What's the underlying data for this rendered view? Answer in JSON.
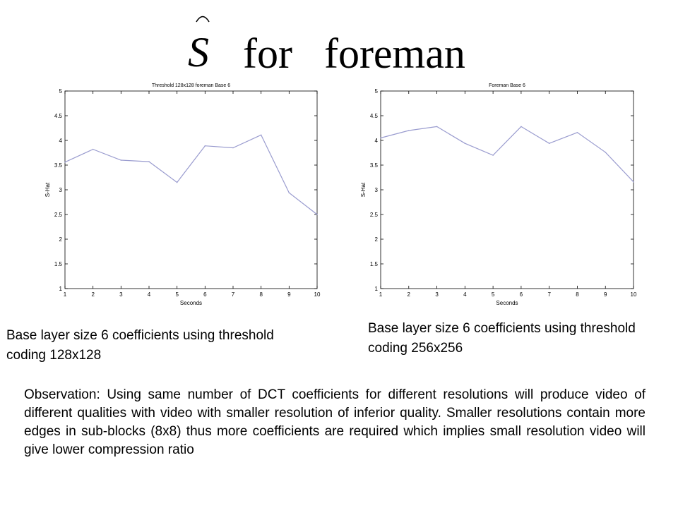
{
  "slide": {
    "title_symbol": "S",
    "title_text": "for   foreman",
    "caption_left": "Base layer size 6 coefficients using threshold coding 128x128",
    "caption_right": "Base layer size 6 coefficients using threshold coding 256x256",
    "observation": "Observation: Using same number of DCT coefficients for different resolutions will produce video of different qualities with video with smaller resolution of inferior quality. Smaller resolutions contain more edges in sub-blocks (8x8) thus more coefficients are required which implies small resolution video will give lower compression ratio"
  },
  "colors": {
    "line": "#9a9ccf",
    "axis": "#000000",
    "background": "#ffffff"
  },
  "chart_data": [
    {
      "type": "line",
      "title": "Threshold 128x128 foreman Base 6",
      "xlabel": "Seconds",
      "ylabel": "S-Hat",
      "x": [
        1,
        2,
        3,
        4,
        5,
        6,
        7,
        8,
        9,
        10
      ],
      "series": [
        {
          "values": [
            3.56,
            3.82,
            3.6,
            3.57,
            3.15,
            3.89,
            3.85,
            4.11,
            2.94,
            2.5
          ]
        }
      ],
      "xlim": [
        1,
        10
      ],
      "ylim": [
        1,
        5
      ],
      "xticks": [
        "1",
        "2",
        "3",
        "4",
        "5",
        "6",
        "7",
        "8",
        "9",
        "10"
      ],
      "yticks": [
        "1",
        "1.5",
        "2",
        "2.5",
        "3",
        "3.5",
        "4",
        "4.5",
        "5"
      ],
      "grid": false
    },
    {
      "type": "line",
      "title": "Foreman Base 6",
      "xlabel": "Seconds",
      "ylabel": "S-Hat",
      "x": [
        1,
        2,
        3,
        4,
        5,
        6,
        7,
        8,
        9,
        10
      ],
      "series": [
        {
          "values": [
            4.05,
            4.2,
            4.28,
            3.94,
            3.7,
            4.28,
            3.94,
            4.16,
            3.76,
            3.16
          ]
        }
      ],
      "xlim": [
        1,
        10
      ],
      "ylim": [
        1,
        5
      ],
      "xticks": [
        "1",
        "2",
        "3",
        "4",
        "5",
        "6",
        "7",
        "8",
        "9",
        "10"
      ],
      "yticks": [
        "1",
        "1.5",
        "2",
        "2.5",
        "3",
        "3.5",
        "4",
        "4.5",
        "5"
      ],
      "grid": false
    }
  ]
}
